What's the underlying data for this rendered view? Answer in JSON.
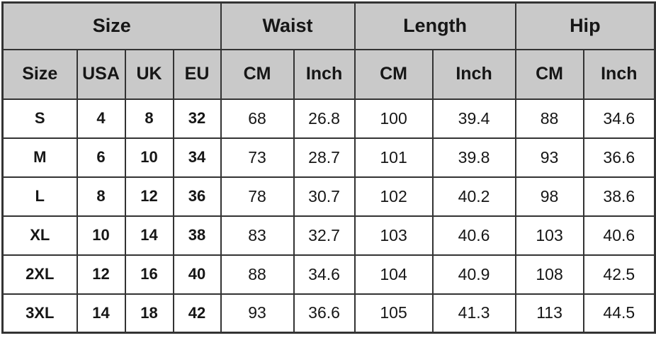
{
  "table": {
    "colors": {
      "header_bg": "#c9c9c9",
      "row_bg": "#ffffff",
      "border": "#333333",
      "text": "#161616"
    },
    "group_headers": [
      {
        "label": "Size",
        "colspan": 4
      },
      {
        "label": "Waist",
        "colspan": 2
      },
      {
        "label": "Length",
        "colspan": 2
      },
      {
        "label": "Hip",
        "colspan": 2
      }
    ],
    "column_headers": [
      "Size",
      "USA",
      "UK",
      "EU",
      "CM",
      "Inch",
      "CM",
      "Inch",
      "CM",
      "Inch"
    ],
    "rows": [
      [
        "S",
        "4",
        "8",
        "32",
        "68",
        "26.8",
        "100",
        "39.4",
        "88",
        "34.6"
      ],
      [
        "M",
        "6",
        "10",
        "34",
        "73",
        "28.7",
        "101",
        "39.8",
        "93",
        "36.6"
      ],
      [
        "L",
        "8",
        "12",
        "36",
        "78",
        "30.7",
        "102",
        "40.2",
        "98",
        "38.6"
      ],
      [
        "XL",
        "10",
        "14",
        "38",
        "83",
        "32.7",
        "103",
        "40.6",
        "103",
        "40.6"
      ],
      [
        "2XL",
        "12",
        "16",
        "40",
        "88",
        "34.6",
        "104",
        "40.9",
        "108",
        "42.5"
      ],
      [
        "3XL",
        "14",
        "18",
        "42",
        "93",
        "36.6",
        "105",
        "41.3",
        "113",
        "44.5"
      ]
    ],
    "row_cell_names": [
      "cell-size",
      "cell-usa",
      "cell-uk",
      "cell-eu",
      "cell-waist-cm",
      "cell-waist-inch",
      "cell-length-cm",
      "cell-length-inch",
      "cell-hip-cm",
      "cell-hip-inch"
    ]
  }
}
